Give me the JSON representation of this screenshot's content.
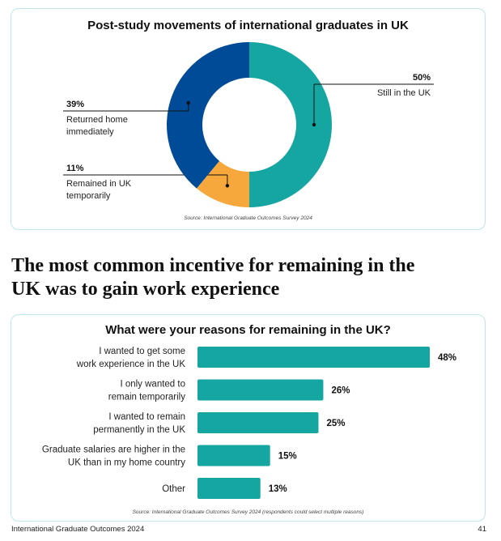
{
  "donut": {
    "title": "Post-study movements of international graduates in UK",
    "source": "Source: International Graduate Outcomes Survey 2024"
  },
  "headline": "The most common incentive for remaining in the UK was to gain work experience",
  "bars": {
    "title": "What were your reasons for remaining in the UK?",
    "source": "Source: International Graduate Outcomes Survey 2024 (respondents could select multiple reasons)"
  },
  "footer": {
    "left": "International Graduate Outcomes 2024",
    "page": "41"
  },
  "chart_data": [
    {
      "type": "pie",
      "donut": true,
      "title": "Post-study movements of international graduates in UK",
      "unit": "%",
      "slices": [
        {
          "label": [
            "Still in the UK"
          ],
          "value": 50,
          "color": "#16a6a2"
        },
        {
          "label": [
            "Remained in UK",
            "temporarily"
          ],
          "value": 11,
          "color": "#f7a83c"
        },
        {
          "label": [
            "Returned home",
            "immediately"
          ],
          "value": 39,
          "color": "#004b97"
        }
      ]
    },
    {
      "type": "bar",
      "orientation": "horizontal",
      "title": "What were your reasons for remaining in the UK?",
      "unit": "%",
      "color": "#16a6a2",
      "categories": [
        [
          "I wanted to get some",
          "work experience in the UK"
        ],
        [
          "I only wanted to",
          "remain temporarily"
        ],
        [
          "I wanted to remain",
          "permanently in the UK"
        ],
        [
          "Graduate salaries are higher in the",
          "UK than in my home country"
        ],
        [
          "Other"
        ]
      ],
      "values": [
        48,
        26,
        25,
        15,
        13
      ]
    }
  ]
}
